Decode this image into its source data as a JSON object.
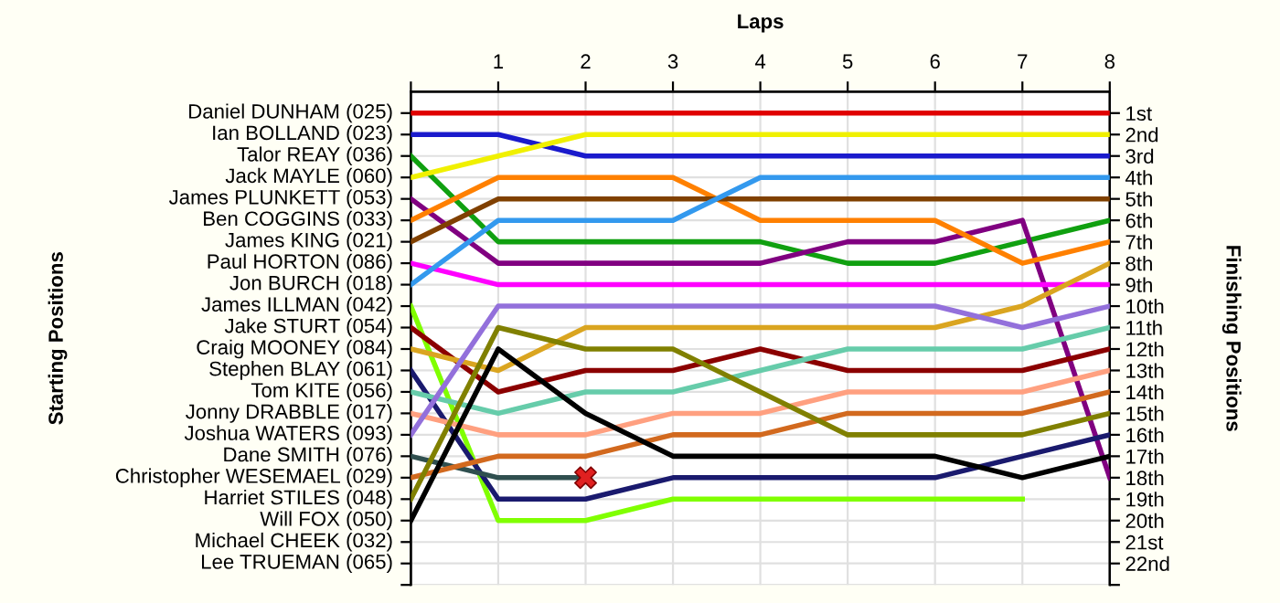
{
  "chart_data": {
    "type": "line",
    "xlabel": "Laps",
    "y2label": "Finishing Positions",
    "x": [
      0,
      1,
      2,
      3,
      4,
      5,
      6,
      7,
      8
    ],
    "xlim": [
      0,
      8
    ],
    "xticks": [
      {
        "value": 0,
        "label": null
      },
      1,
      2,
      3,
      4,
      5,
      6,
      7,
      8
    ],
    "y2lim": [
      23,
      0
    ],
    "annotations": [
      "Daniel DUNHAM (025)",
      "Ian BOLLAND (023)",
      "Talor REAY (036)",
      "Jack MAYLE (060)",
      "James PLUNKETT (053)",
      "Ben COGGINS (033)",
      "James KING (021)",
      "Paul HORTON (086)",
      "Jon BURCH (018)",
      "James ILLMAN (042)",
      "Jake STURT (054)",
      "Craig MOONEY (084)",
      "Stephen BLAY (061)",
      "Tom KITE (056)",
      "Jonny DRABBLE (017)",
      "Joshua WATERS (093)",
      "Dane SMITH (076)",
      "Christopher WESEMAEL (029)",
      "Harriet STILES (048)",
      "Will FOX (050)",
      "Michael CHEEK (032)",
      "Lee TRUEMAN (065)",
      "Starting Positions"
    ],
    "y2ticks": [
      {
        "value": 1,
        "label": "1st"
      },
      {
        "value": 2,
        "label": "2nd"
      },
      {
        "value": 3,
        "label": "3rd"
      },
      {
        "value": 4,
        "label": "4th"
      },
      {
        "value": 5,
        "label": "5th"
      },
      {
        "value": 6,
        "label": "6th"
      },
      {
        "value": 7,
        "label": "7th"
      },
      {
        "value": 8,
        "label": "8th"
      },
      {
        "value": 9,
        "label": "9th"
      },
      {
        "value": 10,
        "label": "10th"
      },
      {
        "value": 11,
        "label": "11th"
      },
      {
        "value": 12,
        "label": "12th"
      },
      {
        "value": 13,
        "label": "13th"
      },
      {
        "value": 14,
        "label": "14th"
      },
      {
        "value": 15,
        "label": "15th"
      },
      {
        "value": 16,
        "label": "16th"
      },
      {
        "value": 17,
        "label": "17th"
      },
      {
        "value": 18,
        "label": "18th"
      },
      {
        "value": 19,
        "label": "19th"
      },
      {
        "value": 20,
        "label": "20th"
      },
      {
        "value": 21,
        "label": "21st"
      },
      {
        "value": 22,
        "label": "22nd"
      },
      {
        "value": 23,
        "label": null
      }
    ],
    "grid": true,
    "legend": false,
    "marker": "none",
    "line_style": "solid",
    "series": [
      {
        "axis": "y2",
        "color": "#e00000",
        "values": [
          1,
          1,
          1,
          1,
          1,
          1,
          1,
          1,
          1
        ]
      },
      {
        "axis": "y2",
        "color": "#1a1acc",
        "values": [
          2,
          2,
          3,
          3,
          3,
          3,
          3,
          3,
          3
        ]
      },
      {
        "axis": "y2",
        "color": "#10a010",
        "values": [
          3,
          7,
          7,
          7,
          7,
          8,
          8,
          7,
          6
        ]
      },
      {
        "axis": "y2",
        "color": "#f0f000",
        "values": [
          4,
          3,
          2,
          2,
          2,
          2,
          2,
          2,
          2
        ]
      },
      {
        "axis": "y2",
        "color": "#800080",
        "values": [
          5,
          8,
          8,
          8,
          8,
          7,
          7,
          6,
          18
        ]
      },
      {
        "axis": "y2",
        "color": "#ff8000",
        "values": [
          6,
          4,
          4,
          4,
          6,
          6,
          6,
          8,
          7
        ]
      },
      {
        "axis": "y2",
        "color": "#804000",
        "values": [
          7,
          5,
          5,
          5,
          5,
          5,
          5,
          5,
          5
        ]
      },
      {
        "axis": "y2",
        "color": "#ff00ff",
        "values": [
          8,
          9,
          9,
          9,
          9,
          9,
          9,
          9,
          9
        ]
      },
      {
        "axis": "y2",
        "color": "#3399ee",
        "values": [
          9,
          6,
          6,
          6,
          4,
          4,
          4,
          4,
          4
        ]
      },
      {
        "axis": "y2",
        "color": "#80ff00",
        "values": [
          10,
          20,
          20,
          19,
          19,
          19,
          19,
          19,
          null
        ]
      },
      {
        "axis": "y2",
        "color": "#8b0000",
        "values": [
          11,
          14,
          13,
          13,
          12,
          13,
          13,
          13,
          12
        ]
      },
      {
        "axis": "y2",
        "color": "#daa520",
        "values": [
          12,
          13,
          11,
          11,
          11,
          11,
          11,
          10,
          8
        ]
      },
      {
        "axis": "y2",
        "color": "#1a1a6e",
        "values": [
          13,
          19,
          19,
          18,
          18,
          18,
          18,
          17,
          16
        ]
      },
      {
        "axis": "y2",
        "color": "#66ccaa",
        "values": [
          14,
          15,
          14,
          14,
          13,
          12,
          12,
          12,
          11
        ]
      },
      {
        "axis": "y2",
        "color": "#ffa080",
        "values": [
          15,
          16,
          16,
          15,
          15,
          14,
          14,
          14,
          13
        ]
      },
      {
        "axis": "y2",
        "color": "#9370db",
        "values": [
          16,
          10,
          10,
          10,
          10,
          10,
          10,
          11,
          10
        ]
      },
      {
        "axis": "y2",
        "color": "#2f4f4f",
        "values": [
          17,
          18,
          18,
          null,
          null,
          null,
          null,
          null,
          null
        ]
      },
      {
        "axis": "y2",
        "color": "#d2691e",
        "values": [
          18,
          17,
          17,
          16,
          16,
          15,
          15,
          15,
          14
        ]
      },
      {
        "axis": "y2",
        "color": "#808000",
        "values": [
          19,
          11,
          12,
          12,
          14,
          16,
          16,
          16,
          15
        ]
      },
      {
        "axis": "y2",
        "color": "#000000",
        "values": [
          20,
          12,
          15,
          17,
          17,
          17,
          17,
          18,
          17
        ]
      },
      {
        "axis": "y2",
        "type": "scatter",
        "marker": "cross",
        "color": "#e02020",
        "x": [
          2
        ],
        "values": [
          18
        ]
      }
    ]
  }
}
